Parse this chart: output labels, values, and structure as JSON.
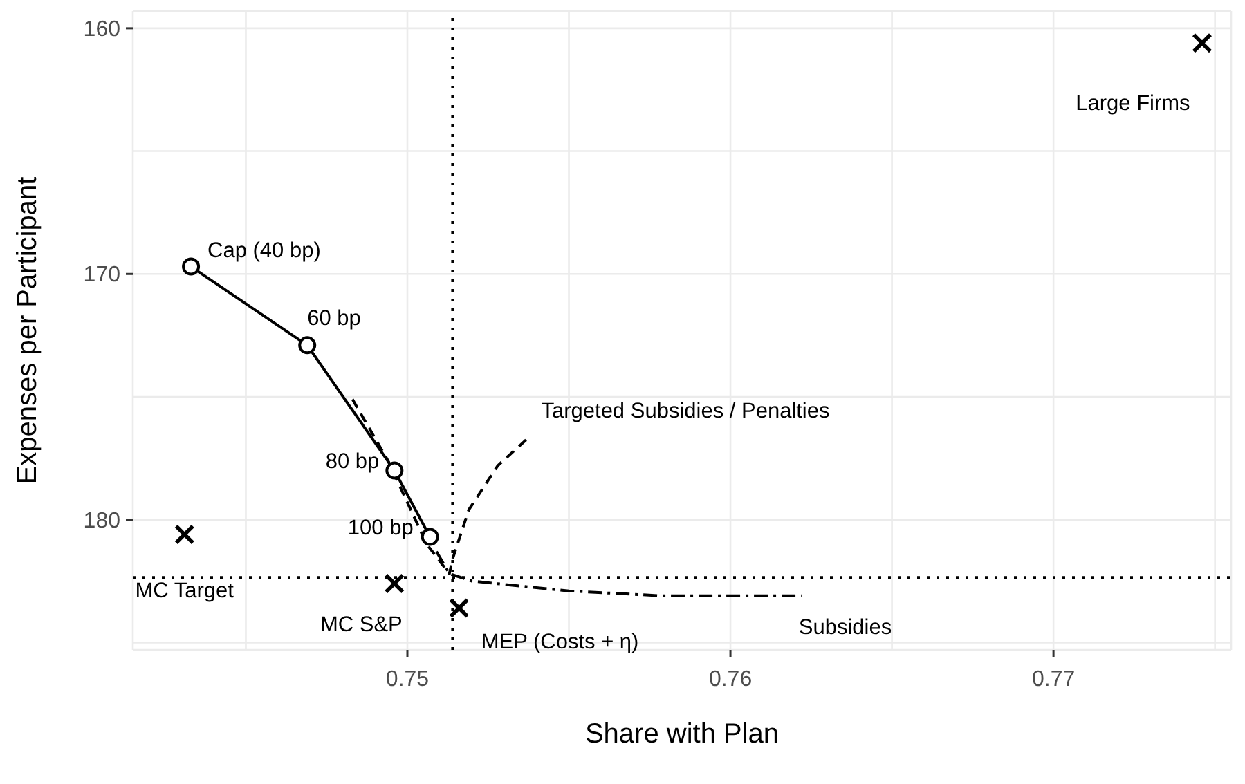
{
  "chart_data": {
    "type": "line",
    "xlabel": "Share with Plan",
    "ylabel": "Expenses per Participant",
    "xlim": [
      0.7415,
      0.7755
    ],
    "ylim": [
      185.3,
      159.3
    ],
    "xticks": [
      {
        "value": 0.745,
        "label": null
      },
      0.75,
      {
        "value": 0.755,
        "label": null
      },
      0.76,
      {
        "value": 0.765,
        "label": null
      },
      0.77,
      {
        "value": 0.775,
        "label": null
      }
    ],
    "yticks": [
      160,
      {
        "value": 165,
        "label": null
      },
      170,
      {
        "value": 175,
        "label": null
      },
      180,
      {
        "value": 185,
        "label": null
      }
    ],
    "grid": true,
    "legend": false,
    "series": [
      {
        "color": "#000000",
        "marker": "circle",
        "line_style": "solid",
        "x": [
          0.7433,
          0.7469,
          0.7496,
          0.7507
        ],
        "values": [
          169.7,
          172.9,
          178.0,
          180.7
        ]
      },
      {
        "color": "#000000",
        "marker": "none",
        "line_style": "dashed",
        "x": [
          0.7483,
          0.7494,
          0.7506,
          0.7513,
          0.7514,
          0.7519,
          0.7528,
          0.7538
        ],
        "values": [
          175.1,
          177.6,
          181.0,
          182.2,
          181.6,
          179.6,
          177.8,
          176.6
        ]
      },
      {
        "color": "#000000",
        "marker": "none",
        "line_style": "dashdot",
        "x": [
          0.7509,
          0.7513,
          0.752,
          0.755,
          0.7579,
          0.7622
        ],
        "values": [
          181.3,
          182.2,
          182.5,
          182.9,
          183.1,
          183.1
        ]
      },
      {
        "type": "scatter",
        "color": "#000000",
        "marker": "cross",
        "x": [
          0.7431,
          0.7496,
          0.7516,
          0.7746
        ],
        "values": [
          180.6,
          182.6,
          183.6,
          160.6
        ]
      }
    ],
    "ref_lines": [
      {
        "axis": "x",
        "value": 0.7514,
        "line_style": "dotted",
        "color": "#000000"
      },
      {
        "axis": "y",
        "value": 182.35,
        "line_style": "dotted",
        "color": "#000000"
      }
    ],
    "annotations": [
      {
        "text": "Cap (40 bp)",
        "x": 0.7433,
        "y": 169.7
      },
      {
        "text": "60 bp",
        "x": 0.7469,
        "y": 172.9
      },
      {
        "text": "80 bp",
        "x": 0.7496,
        "y": 178.0
      },
      {
        "text": "100 bp",
        "x": 0.7507,
        "y": 180.7
      },
      {
        "text": "Targeted Subsidies / Penalties",
        "x": 0.7538,
        "y": 176.6
      },
      {
        "text": "MC Target",
        "x": 0.7431,
        "y": 180.6
      },
      {
        "text": "MC S&P",
        "x": 0.7496,
        "y": 182.6
      },
      {
        "text": "MEP (Costs + η)",
        "x": 0.7516,
        "y": 183.6
      },
      {
        "text": "Subsidies",
        "x": 0.7622,
        "y": 183.1
      },
      {
        "text": "Large Firms",
        "x": 0.7746,
        "y": 160.6
      }
    ]
  }
}
